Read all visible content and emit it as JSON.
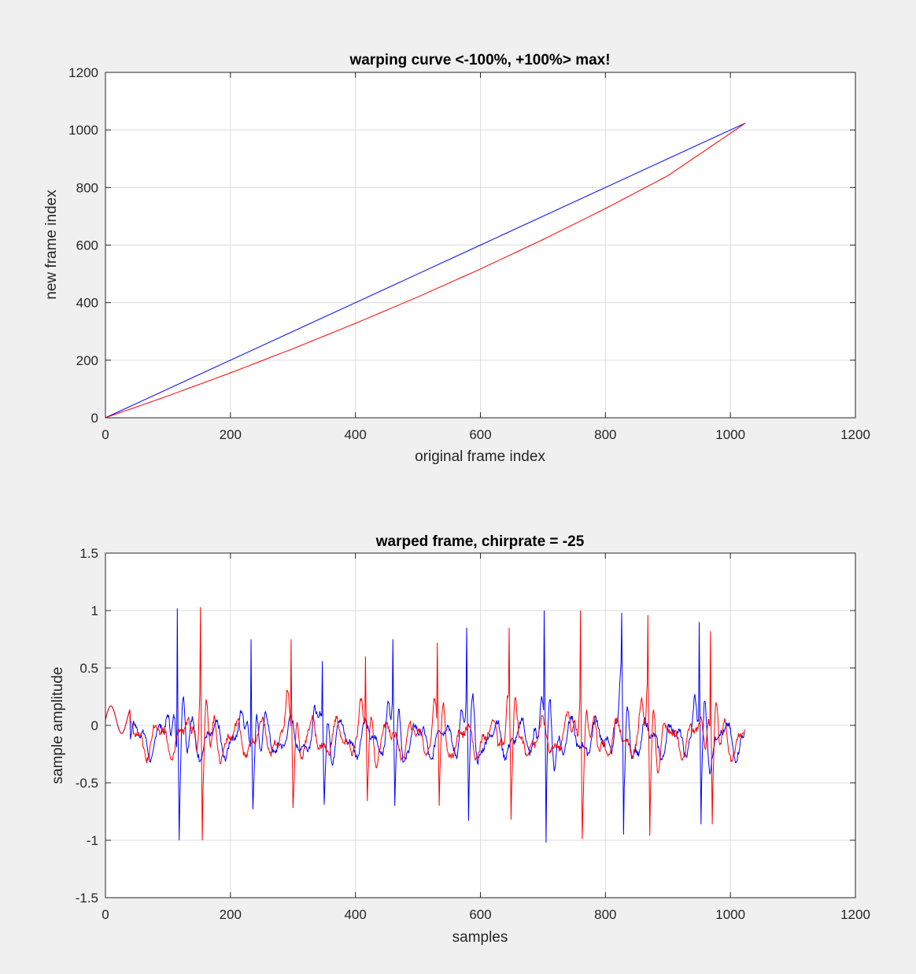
{
  "chart_data": [
    {
      "type": "line",
      "title": "warping curve <-100%, +100%> max!",
      "xlabel": "original frame index",
      "ylabel": "new frame index",
      "xlim": [
        0,
        1200
      ],
      "ylim": [
        0,
        1200
      ],
      "xticks": [
        "0",
        "200",
        "400",
        "600",
        "800",
        "1000",
        "1200"
      ],
      "yticks": [
        "0",
        "200",
        "400",
        "600",
        "800",
        "1000",
        "1200"
      ],
      "grid": true,
      "legend": "none",
      "series": [
        {
          "color": "#0000ff",
          "x": [
            0,
            200,
            400,
            600,
            800,
            1024
          ],
          "y": [
            0,
            200,
            400,
            600,
            800,
            1024
          ]
        },
        {
          "color": "#ff0000",
          "x": [
            0,
            100,
            200,
            300,
            400,
            500,
            600,
            700,
            800,
            900,
            1024
          ],
          "y": [
            0,
            76,
            156,
            240,
            328,
            420,
            517,
            619,
            727,
            841,
            1024
          ]
        }
      ]
    },
    {
      "type": "line",
      "title": "warped frame, chirprate = -25",
      "xlabel": "samples",
      "ylabel": "sample amplitude",
      "xlim": [
        0,
        1200
      ],
      "ylim": [
        -1.5,
        1.5
      ],
      "xticks": [
        "0",
        "200",
        "400",
        "600",
        "800",
        "1000",
        "1200"
      ],
      "yticks": [
        "-1.5",
        "-1",
        "-0.5",
        "0",
        "0.5",
        "1",
        "1.5"
      ],
      "grid": true,
      "legend": "none",
      "series": [
        {
          "color": "#0000ff",
          "pulse_samples": [
            115,
            233,
            347,
            460,
            578,
            702,
            826,
            950
          ],
          "pulse_peaks": [
            1.02,
            0.75,
            0.56,
            0.75,
            0.85,
            1.0,
            0.98,
            0.9
          ],
          "pulse_troughs": [
            -1.0,
            -0.73,
            -0.69,
            -0.7,
            -0.83,
            -1.02,
            -0.95,
            -0.86
          ],
          "length": 1024
        },
        {
          "color": "#ff0000",
          "pulse_samples": [
            152,
            297,
            416,
            531,
            646,
            760,
            868,
            968
          ],
          "pulse_peaks": [
            1.03,
            0.75,
            0.6,
            0.72,
            0.85,
            1.0,
            0.96,
            0.82
          ],
          "pulse_troughs": [
            -1.0,
            -0.72,
            -0.66,
            -0.7,
            -0.82,
            -0.99,
            -0.96,
            -0.86
          ],
          "length": 1024
        }
      ]
    }
  ]
}
